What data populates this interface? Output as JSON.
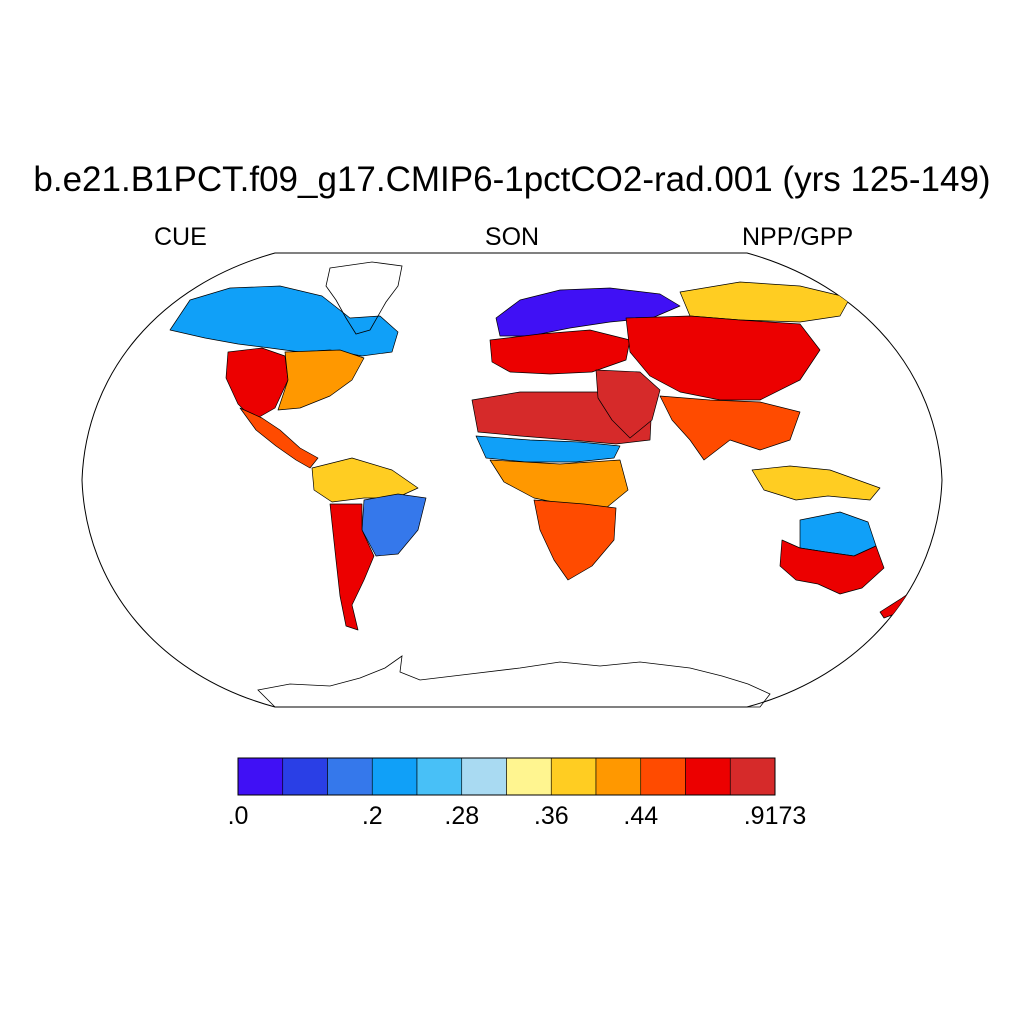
{
  "title": "b.e21.B1PCT.f09_g17.CMIP6-1pctCO2-rad.001 (yrs 125-149)",
  "subtitle_left": "CUE",
  "subtitle_center": "SON",
  "subtitle_right": "NPP/GPP",
  "colorbar": {
    "colors": [
      "#4010f5",
      "#2a3fe6",
      "#3578eb",
      "#10a0f8",
      "#48c0f7",
      "#a9daf2",
      "#fff590",
      "#ffcd22",
      "#ff9800",
      "#ff4b00",
      "#ec0000",
      "#d62a2a"
    ],
    "labels": [
      {
        "text": ".0",
        "boundary": 0
      },
      {
        "text": ".2",
        "boundary": 3
      },
      {
        "text": ".28",
        "boundary": 5
      },
      {
        "text": ".36",
        "boundary": 7
      },
      {
        "text": ".44",
        "boundary": 9
      },
      {
        "text": ".9173",
        "boundary": 12
      }
    ]
  },
  "map": {
    "projection": "Robinson",
    "ocean_color": "#ffffff",
    "missing_color": "#ffffff",
    "regions": [
      {
        "name": "Canada/Alaska",
        "category": 3
      },
      {
        "name": "Western US",
        "category": 10
      },
      {
        "name": "Eastern US",
        "category": 8
      },
      {
        "name": "Mexico/Central America",
        "category": 9
      },
      {
        "name": "Amazon",
        "category": 7
      },
      {
        "name": "Brazil Highlands",
        "category": 2
      },
      {
        "name": "Southern South America",
        "category": 10
      },
      {
        "name": "Northern Europe",
        "category": 0
      },
      {
        "name": "Southern Europe",
        "category": 10
      },
      {
        "name": "Sahara",
        "category": 11
      },
      {
        "name": "Sahel",
        "category": 3
      },
      {
        "name": "Central Africa",
        "category": 8
      },
      {
        "name": "Southern Africa",
        "category": 9
      },
      {
        "name": "Siberia",
        "category": 7
      },
      {
        "name": "Central Asia",
        "category": 10
      },
      {
        "name": "Middle East",
        "category": 11
      },
      {
        "name": "India/Southeast Asia",
        "category": 9
      },
      {
        "name": "Indonesia",
        "category": 7
      },
      {
        "name": "Central Australia",
        "category": 3
      },
      {
        "name": "Coastal Australia",
        "category": 10
      },
      {
        "name": "New Zealand",
        "category": 10
      }
    ]
  }
}
